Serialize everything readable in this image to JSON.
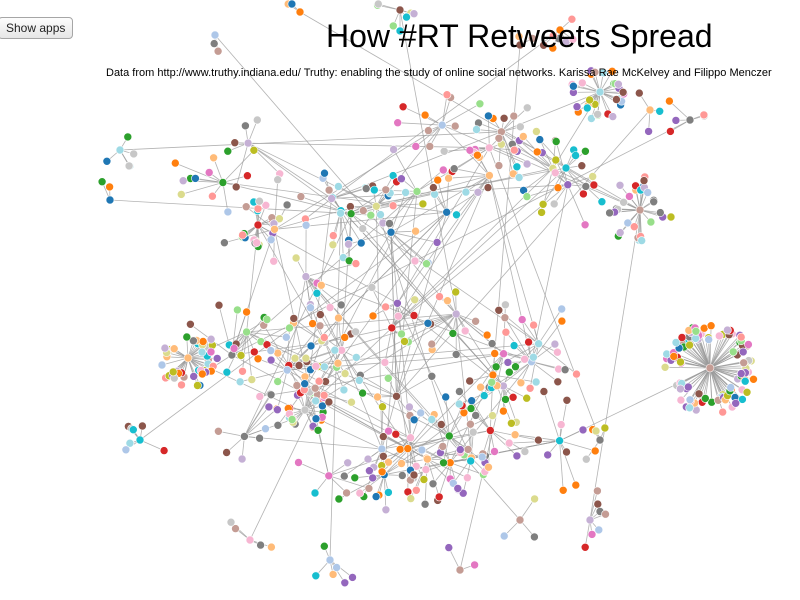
{
  "toolbar": {
    "show_apps_label": "Show apps"
  },
  "header": {
    "title": "How #RT Retweets Spread",
    "credit": "Data from http://www.truthy.indiana.edu/ Truthy: enabling the study of online social networks. Karissa Rae McKelvey and Filippo Menczer"
  },
  "graph": {
    "node_palette": [
      "#1f77b4",
      "#aec7e8",
      "#ff7f0e",
      "#ffbb78",
      "#2ca02c",
      "#98df8a",
      "#d62728",
      "#ff9896",
      "#9467bd",
      "#c5b0d5",
      "#8c564b",
      "#c49c94",
      "#e377c2",
      "#f7b6d2",
      "#7f7f7f",
      "#c7c7c7",
      "#bcbd22",
      "#dbdb8d",
      "#17becf",
      "#9edae5"
    ],
    "edge_color": "#999999"
  }
}
